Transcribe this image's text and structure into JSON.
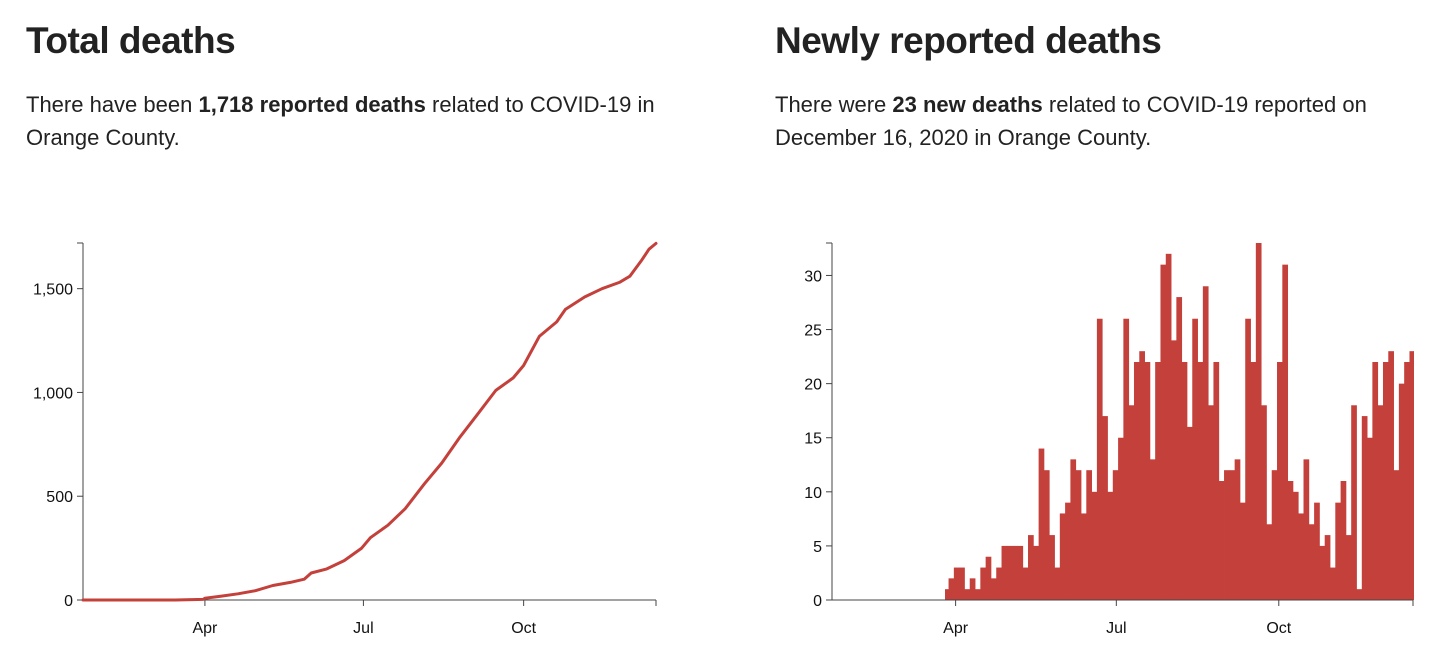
{
  "total": {
    "title": "Total deaths",
    "desc_pre": "There have been ",
    "desc_bold": "1,718 reported deaths",
    "desc_post": " related to COVID-19 in Orange County."
  },
  "new": {
    "title": "Newly reported deaths",
    "desc_pre": "There were ",
    "desc_bold": "23 new deaths",
    "desc_post": " related to COVID-19 reported on December 16, 2020 in Orange County."
  },
  "colors": {
    "series": "#c4403b",
    "axis": "#444444",
    "text": "#222222"
  },
  "chart_data": [
    {
      "type": "line",
      "title": "Total deaths",
      "xlabel": "",
      "ylabel": "",
      "x_domain": [
        "2020-01-22",
        "2020-12-16"
      ],
      "x_ticks": [
        {
          "date": "2020-04-01",
          "label": "Apr"
        },
        {
          "date": "2020-07-01",
          "label": "Jul"
        },
        {
          "date": "2020-10-01",
          "label": "Oct"
        }
      ],
      "ylim": [
        0,
        1720
      ],
      "y_ticks": [
        {
          "value": 0,
          "label": "0"
        },
        {
          "value": 500,
          "label": "500"
        },
        {
          "value": 1000,
          "label": "1,000"
        },
        {
          "value": 1500,
          "label": "1,500"
        }
      ],
      "grid": false,
      "series": [
        {
          "points": [
            [
              "2020-01-22",
              0
            ],
            [
              "2020-03-15",
              0
            ],
            [
              "2020-03-31",
              3
            ],
            [
              "2020-04-01",
              8
            ],
            [
              "2020-04-10",
              18
            ],
            [
              "2020-04-20",
              30
            ],
            [
              "2020-04-30",
              45
            ],
            [
              "2020-05-10",
              70
            ],
            [
              "2020-05-20",
              85
            ],
            [
              "2020-05-28",
              100
            ],
            [
              "2020-06-01",
              130
            ],
            [
              "2020-06-10",
              150
            ],
            [
              "2020-06-20",
              190
            ],
            [
              "2020-06-30",
              250
            ],
            [
              "2020-07-05",
              300
            ],
            [
              "2020-07-15",
              360
            ],
            [
              "2020-07-25",
              440
            ],
            [
              "2020-08-05",
              560
            ],
            [
              "2020-08-15",
              660
            ],
            [
              "2020-08-25",
              780
            ],
            [
              "2020-09-05",
              900
            ],
            [
              "2020-09-15",
              1010
            ],
            [
              "2020-09-25",
              1070
            ],
            [
              "2020-10-01",
              1130
            ],
            [
              "2020-10-10",
              1270
            ],
            [
              "2020-10-20",
              1340
            ],
            [
              "2020-10-25",
              1400
            ],
            [
              "2020-11-05",
              1460
            ],
            [
              "2020-11-15",
              1500
            ],
            [
              "2020-11-25",
              1530
            ],
            [
              "2020-12-01",
              1560
            ],
            [
              "2020-12-08",
              1640
            ],
            [
              "2020-12-12",
              1690
            ],
            [
              "2020-12-16",
              1718
            ]
          ]
        }
      ]
    },
    {
      "type": "bar",
      "title": "Newly reported deaths",
      "xlabel": "",
      "ylabel": "",
      "x_domain": [
        "2020-01-22",
        "2020-12-16"
      ],
      "x_ticks": [
        {
          "date": "2020-04-01",
          "label": "Apr"
        },
        {
          "date": "2020-07-01",
          "label": "Jul"
        },
        {
          "date": "2020-10-01",
          "label": "Oct"
        }
      ],
      "ylim": [
        0,
        33
      ],
      "y_ticks": [
        {
          "value": 0,
          "label": "0"
        },
        {
          "value": 5,
          "label": "5"
        },
        {
          "value": 10,
          "label": "10"
        },
        {
          "value": 15,
          "label": "15"
        },
        {
          "value": 20,
          "label": "20"
        },
        {
          "value": 25,
          "label": "25"
        },
        {
          "value": 30,
          "label": "30"
        }
      ],
      "grid": false,
      "series": [
        {
          "bars": [
            [
              "2020-03-26",
              1
            ],
            [
              "2020-03-28",
              2
            ],
            [
              "2020-03-31",
              3
            ],
            [
              "2020-04-03",
              3
            ],
            [
              "2020-04-06",
              1
            ],
            [
              "2020-04-09",
              2
            ],
            [
              "2020-04-12",
              1
            ],
            [
              "2020-04-15",
              3
            ],
            [
              "2020-04-18",
              4
            ],
            [
              "2020-04-21",
              2
            ],
            [
              "2020-04-24",
              3
            ],
            [
              "2020-04-27",
              5
            ],
            [
              "2020-04-30",
              5
            ],
            [
              "2020-05-03",
              5
            ],
            [
              "2020-05-06",
              5
            ],
            [
              "2020-05-09",
              3
            ],
            [
              "2020-05-12",
              6
            ],
            [
              "2020-05-15",
              5
            ],
            [
              "2020-05-18",
              14
            ],
            [
              "2020-05-21",
              12
            ],
            [
              "2020-05-24",
              6
            ],
            [
              "2020-05-27",
              3
            ],
            [
              "2020-05-30",
              8
            ],
            [
              "2020-06-02",
              9
            ],
            [
              "2020-06-05",
              13
            ],
            [
              "2020-06-08",
              12
            ],
            [
              "2020-06-11",
              8
            ],
            [
              "2020-06-14",
              12
            ],
            [
              "2020-06-17",
              10
            ],
            [
              "2020-06-20",
              26
            ],
            [
              "2020-06-23",
              17
            ],
            [
              "2020-06-26",
              10
            ],
            [
              "2020-06-29",
              12
            ],
            [
              "2020-07-02",
              15
            ],
            [
              "2020-07-05",
              26
            ],
            [
              "2020-07-08",
              18
            ],
            [
              "2020-07-11",
              22
            ],
            [
              "2020-07-14",
              23
            ],
            [
              "2020-07-17",
              22
            ],
            [
              "2020-07-20",
              13
            ],
            [
              "2020-07-23",
              22
            ],
            [
              "2020-07-26",
              31
            ],
            [
              "2020-07-29",
              32
            ],
            [
              "2020-08-01",
              24
            ],
            [
              "2020-08-04",
              28
            ],
            [
              "2020-08-07",
              22
            ],
            [
              "2020-08-10",
              16
            ],
            [
              "2020-08-13",
              26
            ],
            [
              "2020-08-16",
              22
            ],
            [
              "2020-08-19",
              29
            ],
            [
              "2020-08-22",
              18
            ],
            [
              "2020-08-25",
              22
            ],
            [
              "2020-08-28",
              11
            ],
            [
              "2020-08-31",
              12
            ],
            [
              "2020-09-03",
              12
            ],
            [
              "2020-09-06",
              13
            ],
            [
              "2020-09-09",
              9
            ],
            [
              "2020-09-12",
              26
            ],
            [
              "2020-09-15",
              22
            ],
            [
              "2020-09-18",
              33
            ],
            [
              "2020-09-21",
              18
            ],
            [
              "2020-09-24",
              7
            ],
            [
              "2020-09-27",
              12
            ],
            [
              "2020-09-30",
              22
            ],
            [
              "2020-10-03",
              31
            ],
            [
              "2020-10-06",
              11
            ],
            [
              "2020-10-09",
              10
            ],
            [
              "2020-10-12",
              8
            ],
            [
              "2020-10-15",
              13
            ],
            [
              "2020-10-18",
              7
            ],
            [
              "2020-10-21",
              9
            ],
            [
              "2020-10-24",
              5
            ],
            [
              "2020-10-27",
              6
            ],
            [
              "2020-10-30",
              3
            ],
            [
              "2020-11-02",
              9
            ],
            [
              "2020-11-05",
              11
            ],
            [
              "2020-11-08",
              6
            ],
            [
              "2020-11-11",
              18
            ],
            [
              "2020-11-14",
              1
            ],
            [
              "2020-11-17",
              17
            ],
            [
              "2020-11-20",
              15
            ],
            [
              "2020-11-23",
              22
            ],
            [
              "2020-11-26",
              18
            ],
            [
              "2020-11-29",
              22
            ],
            [
              "2020-12-02",
              23
            ],
            [
              "2020-12-05",
              12
            ],
            [
              "2020-12-08",
              20
            ],
            [
              "2020-12-11",
              22
            ],
            [
              "2020-12-14",
              23
            ],
            [
              "2020-12-16",
              23
            ]
          ]
        }
      ]
    }
  ]
}
